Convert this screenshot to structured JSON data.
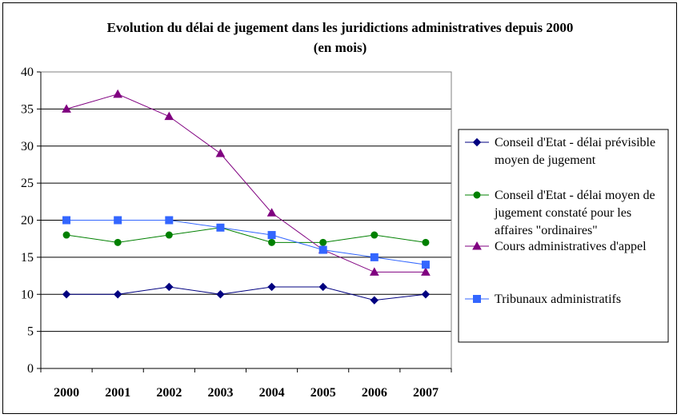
{
  "chart_data": {
    "type": "line",
    "title": "Evolution du délai de jugement dans les juridictions administratives depuis 2000",
    "subtitle": "(en mois)",
    "xlabel": "",
    "ylabel": "",
    "categories": [
      "2000",
      "2001",
      "2002",
      "2003",
      "2004",
      "2005",
      "2006",
      "2007"
    ],
    "ylim": [
      0,
      40
    ],
    "yticks": [
      0,
      5,
      10,
      15,
      20,
      25,
      30,
      35,
      40
    ],
    "grid": true,
    "legend_position": "right",
    "series": [
      {
        "name": "Conseil d'Etat - délai prévisible moyen de jugement",
        "legend_lines": [
          "Conseil d'Etat - délai prévisible",
          "moyen de jugement"
        ],
        "marker": "diamond",
        "color": "#000080",
        "values": [
          10,
          10,
          11,
          10,
          11,
          11,
          9.2,
          10
        ]
      },
      {
        "name": "Conseil d'Etat - délai moyen de jugement constaté pour les affaires \"ordinaires\"",
        "legend_lines": [
          "Conseil d'Etat - délai moyen de",
          "jugement constaté pour les",
          "affaires \"ordinaires\""
        ],
        "marker": "circle",
        "color": "#008000",
        "values": [
          18,
          17,
          18,
          19,
          17,
          17,
          18,
          17
        ]
      },
      {
        "name": "Cours administratives d'appel",
        "legend_lines": [
          "Cours administratives d'appel"
        ],
        "marker": "triangle",
        "color": "#800080",
        "values": [
          35,
          37,
          34,
          29,
          21,
          16,
          13,
          13
        ]
      },
      {
        "name": "Tribunaux administratifs",
        "legend_lines": [
          "Tribunaux administratifs"
        ],
        "marker": "square",
        "color": "#3366FF",
        "values": [
          20,
          20,
          20,
          19,
          18,
          16,
          15,
          14
        ]
      }
    ]
  }
}
